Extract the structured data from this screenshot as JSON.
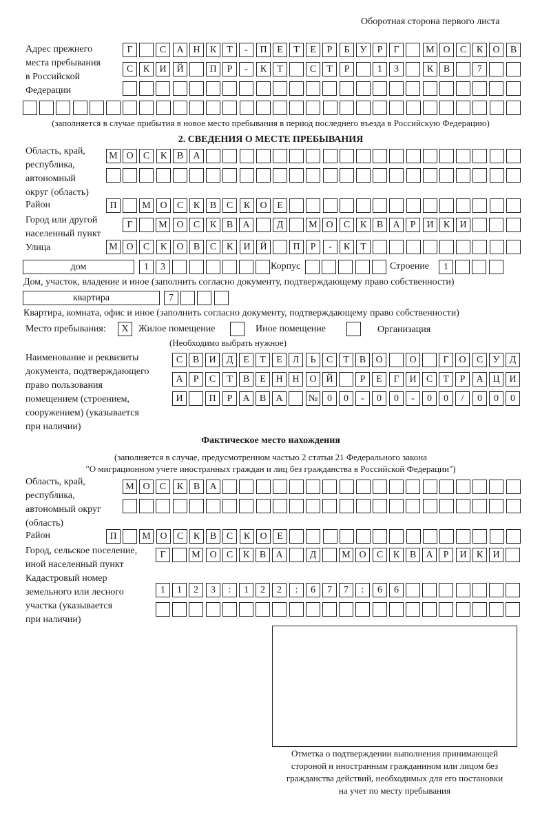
{
  "header": {
    "side_note": "Оборотная сторона первого листа"
  },
  "prev_address": {
    "label_lines": [
      "Адрес прежнего",
      "места пребывания",
      "в Российской",
      "Федерации"
    ],
    "rows": [
      [
        "Г",
        "",
        "С",
        "А",
        "Н",
        "К",
        "Т",
        "-",
        "П",
        "Е",
        "Т",
        "Е",
        "Р",
        "Б",
        "У",
        "Р",
        "Г",
        "",
        "М",
        "О",
        "С",
        "К",
        "О",
        "В"
      ],
      [
        "С",
        "К",
        "И",
        "Й",
        "",
        "П",
        "Р",
        "-",
        "К",
        "Т",
        "",
        "С",
        "Т",
        "Р",
        "",
        "1",
        "3",
        "",
        "К",
        "В",
        "",
        "7",
        "",
        ""
      ],
      [
        "",
        "",
        "",
        "",
        "",
        "",
        "",
        "",
        "",
        "",
        "",
        "",
        "",
        "",
        "",
        "",
        "",
        "",
        "",
        "",
        "",
        "",
        "",
        ""
      ],
      [
        "",
        "",
        "",
        "",
        "",
        "",
        "",
        "",
        "",
        "",
        "",
        "",
        "",
        "",
        "",
        "",
        "",
        "",
        "",
        "",
        "",
        "",
        "",
        "",
        "",
        "",
        "",
        "",
        "",
        ""
      ]
    ],
    "note": "(заполняется в случае прибытия в новое место пребывания в период последнего въезда в Российскую Федерацию)"
  },
  "section2": {
    "title": "2. СВЕДЕНИЯ О МЕСТЕ ПРЕБЫВАНИЯ",
    "region": {
      "label_lines": [
        "Область, край,",
        "республика,",
        "автономный",
        "округ (область)"
      ],
      "rows": [
        [
          "М",
          "О",
          "С",
          "К",
          "В",
          "А",
          "",
          "",
          "",
          "",
          "",
          "",
          "",
          "",
          "",
          "",
          "",
          "",
          "",
          "",
          "",
          "",
          "",
          "",
          ""
        ],
        [
          "",
          "",
          "",
          "",
          "",
          "",
          "",
          "",
          "",
          "",
          "",
          "",
          "",
          "",
          "",
          "",
          "",
          "",
          "",
          "",
          "",
          "",
          "",
          "",
          ""
        ]
      ]
    },
    "district": {
      "label": "Район",
      "cells": [
        "П",
        "",
        "М",
        "О",
        "С",
        "К",
        "В",
        "С",
        "К",
        "О",
        "Е",
        "",
        "",
        "",
        "",
        "",
        "",
        "",
        "",
        "",
        "",
        "",
        "",
        "",
        ""
      ]
    },
    "city": {
      "label_lines": [
        "Город или другой",
        "населенный пункт"
      ],
      "cells": [
        "Г",
        "",
        "М",
        "О",
        "С",
        "К",
        "В",
        "А",
        "",
        "Д",
        "",
        "М",
        "О",
        "С",
        "К",
        "В",
        "А",
        "Р",
        "И",
        "К",
        "И",
        "",
        "",
        ""
      ]
    },
    "street": {
      "label": "Улица",
      "cells": [
        "М",
        "О",
        "С",
        "К",
        "О",
        "В",
        "С",
        "К",
        "И",
        "Й",
        "",
        "П",
        "Р",
        "-",
        "К",
        "Т",
        "",
        "",
        "",
        "",
        "",
        "",
        "",
        "",
        ""
      ]
    },
    "house": {
      "type_value": "дом",
      "cells": [
        "1",
        "3",
        "",
        "",
        "",
        "",
        "",
        ""
      ],
      "korpus_label": "Корпус",
      "korpus_cells": [
        "",
        "",
        "",
        "",
        ""
      ],
      "building_label": "Строение",
      "building_cells": [
        "1",
        "",
        "",
        ""
      ],
      "caption": "Дом, участок, владение и иное (заполнить согласно документу, подтверждающему право собственности)"
    },
    "apartment": {
      "type_value": "квартира",
      "cells": [
        "7",
        "",
        "",
        ""
      ],
      "caption": "Квартира, комната, офис и иное (заполнить согласно документу, подтверждающему право собственности)"
    },
    "stay_place": {
      "label": "Место пребывания:",
      "options": [
        {
          "label": "Жилое помещение",
          "mark": "X"
        },
        {
          "label": "Иное помещение",
          "mark": ""
        },
        {
          "label": "Организация",
          "mark": ""
        }
      ],
      "hint": "(Необходимо выбрать нужное)"
    },
    "document": {
      "label_lines": [
        "Наименование и реквизиты",
        "документа, подтверждающего",
        "право пользования",
        "помещением (строением,",
        "сооружением) (указывается",
        "при наличии)"
      ],
      "rows": [
        [
          "С",
          "В",
          "И",
          "Д",
          "Е",
          "Т",
          "Е",
          "Л",
          "Ь",
          "С",
          "Т",
          "В",
          "О",
          "",
          "О",
          "",
          "Г",
          "О",
          "С",
          "У",
          "Д"
        ],
        [
          "А",
          "Р",
          "С",
          "Т",
          "В",
          "Е",
          "Н",
          "Н",
          "О",
          "Й",
          "",
          "Р",
          "Е",
          "Г",
          "И",
          "С",
          "Т",
          "Р",
          "А",
          "Ц",
          "И"
        ],
        [
          "И",
          "",
          "П",
          "Р",
          "А",
          "В",
          "А",
          "",
          "№",
          "0",
          "0",
          "-",
          "0",
          "0",
          "-",
          "0",
          "0",
          "/",
          "0",
          "0",
          "0"
        ]
      ]
    }
  },
  "actual": {
    "title": "Фактическое место нахождения",
    "note_lines": [
      "(заполняется в случае, предусмотренном частью 2 статьи 21 Федерального закона",
      "\"О миграционном учете иностранных граждан и лиц без гражданства в Российской Федерации\")"
    ],
    "region": {
      "label_lines": [
        "Область, край,",
        "республика,",
        "автономный округ",
        "(область)"
      ],
      "rows": [
        [
          "М",
          "О",
          "С",
          "К",
          "В",
          "А",
          "",
          "",
          "",
          "",
          "",
          "",
          "",
          "",
          "",
          "",
          "",
          "",
          "",
          "",
          "",
          "",
          "",
          ""
        ],
        [
          "",
          "",
          "",
          "",
          "",
          "",
          "",
          "",
          "",
          "",
          "",
          "",
          "",
          "",
          "",
          "",
          "",
          "",
          "",
          "",
          "",
          "",
          "",
          ""
        ]
      ]
    },
    "district": {
      "label": "Район",
      "cells": [
        "П",
        "",
        "М",
        "О",
        "С",
        "К",
        "В",
        "С",
        "К",
        "О",
        "Е",
        "",
        "",
        "",
        "",
        "",
        "",
        "",
        "",
        "",
        "",
        "",
        "",
        "",
        ""
      ]
    },
    "city": {
      "label_lines": [
        "Город, сельское поселение,",
        "иной населенный пункт"
      ],
      "cells": [
        "Г",
        "",
        "М",
        "О",
        "С",
        "К",
        "В",
        "А",
        "",
        "Д",
        "",
        "М",
        "О",
        "С",
        "К",
        "В",
        "А",
        "Р",
        "И",
        "К",
        "И",
        ""
      ]
    },
    "cadastral": {
      "label_lines": [
        "Кадастровый номер",
        "земельного или лесного",
        "участка (указывается",
        "при наличии)"
      ],
      "rows": [
        [
          "1",
          "1",
          "2",
          "3",
          ":",
          "1",
          "2",
          "2",
          ":",
          "6",
          "7",
          "7",
          ":",
          "6",
          "6",
          "",
          "",
          "",
          "",
          "",
          "",
          ""
        ],
        [
          "",
          "",
          "",
          "",
          "",
          "",
          "",
          "",
          "",
          "",
          "",
          "",
          "",
          "",
          "",
          "",
          "",
          "",
          "",
          "",
          "",
          ""
        ]
      ]
    }
  },
  "confirmation": {
    "caption_lines": [
      "Отметка о подтверждении выполнения принимающей",
      "стороной и иностранным гражданином или лицом без",
      "гражданства действий, необходимых для его постановки",
      "на учет по месту пребывания"
    ]
  }
}
